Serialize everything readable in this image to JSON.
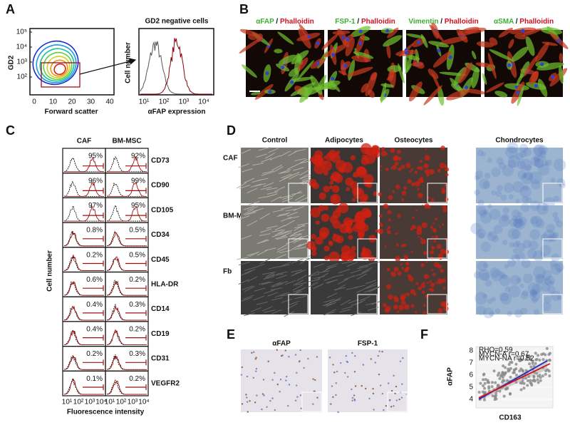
{
  "panel_a": {
    "label": "A",
    "contour": {
      "y_label": "GD2",
      "y_ticks": [
        "10²",
        "10³",
        "10⁴",
        "10⁵"
      ],
      "x_ticks": [
        0,
        10,
        20,
        30,
        40
      ],
      "x_label": "Forward scatter"
    },
    "histogram": {
      "title": "GD2 negative cells",
      "y_label": "Cell number",
      "x_label": "αFAP expression",
      "x_ticks": [
        "10¹",
        "10²",
        "10³",
        "10⁴"
      ]
    }
  },
  "panel_b": {
    "label": "B",
    "images": [
      {
        "stain": "αFAP",
        "separator": "/",
        "counterstain": "Phalloidin"
      },
      {
        "stain": "FSP-1",
        "separator": "/",
        "counterstain": "Phalloidin"
      },
      {
        "stain": "Vimentin",
        "separator": "/",
        "counterstain": "Phalloidin"
      },
      {
        "stain": "αSMA",
        "separator": "/",
        "counterstain": "Phalloidin"
      }
    ]
  },
  "panel_c": {
    "label": "C",
    "columns": [
      "CAF",
      "BM-MSC"
    ],
    "rows": [
      {
        "marker": "CD73",
        "caf": "95%",
        "bm_msc": "92%"
      },
      {
        "marker": "CD90",
        "caf": "96%",
        "bm_msc": "99%"
      },
      {
        "marker": "CD105",
        "caf": "97%",
        "bm_msc": "95%"
      },
      {
        "marker": "CD34",
        "caf": "0.8%",
        "bm_msc": "0.5%"
      },
      {
        "marker": "CD45",
        "caf": "0.2%",
        "bm_msc": "0.5%"
      },
      {
        "marker": "HLA-DR",
        "caf": "0.6%",
        "bm_msc": "0.2%"
      },
      {
        "marker": "CD14",
        "caf": "0.4%",
        "bm_msc": "0.3%"
      },
      {
        "marker": "CD19",
        "caf": "0.4%",
        "bm_msc": "0.2%"
      },
      {
        "marker": "CD31",
        "caf": "0.2%",
        "bm_msc": "0.3%"
      },
      {
        "marker": "VEGFR2",
        "caf": "0.1%",
        "bm_msc": "0.2%"
      }
    ],
    "y_label": "Cell number",
    "x_label": "Fluorescence intensity",
    "x_ticks": [
      "10¹",
      "10²",
      "10³",
      "10⁴"
    ]
  },
  "panel_d": {
    "label": "D",
    "columns": [
      "Control",
      "Adipocytes",
      "Osteocytes",
      "Chondrocytes"
    ],
    "rows": [
      "CAF",
      "BM-MSC",
      "Fb"
    ]
  },
  "panel_e": {
    "label": "E",
    "images": [
      "αFAP",
      "FSP-1"
    ]
  },
  "panel_f": {
    "label": "F",
    "y_label": "αFAP",
    "x_label": "CD163",
    "y_ticks": [
      4,
      5,
      6,
      7,
      8
    ],
    "legend": [
      "RHO=0.59",
      "MYCN-A r=0.67",
      "MYCN-NA r=0.52"
    ]
  }
}
